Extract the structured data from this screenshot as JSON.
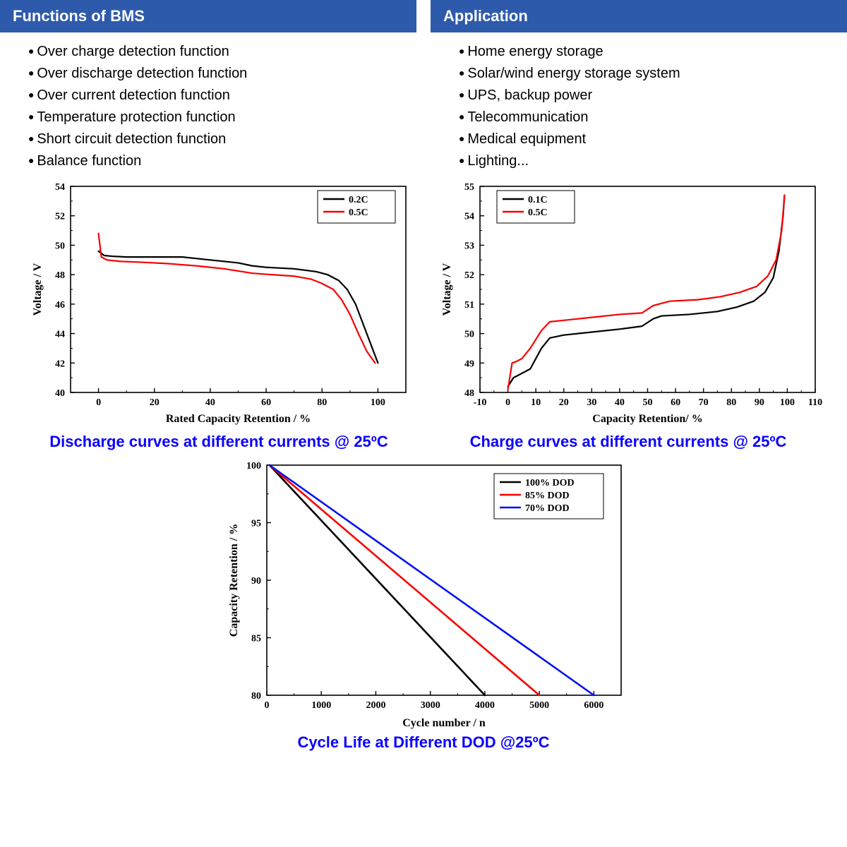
{
  "sections": {
    "bms": {
      "title": "Functions of BMS",
      "items": [
        "Over charge detection function",
        "Over discharge detection function",
        "Over current detection function",
        "Temperature protection function",
        "Short circuit detection function",
        "Balance function"
      ]
    },
    "app": {
      "title": "Application",
      "items": [
        "Home energy storage",
        "Solar/wind energy storage system",
        "UPS, backup power",
        "Telecommunication",
        "Medical equipment",
        "Lighting..."
      ]
    }
  },
  "header_bg": "#2e5aac",
  "header_fg": "#ffffff",
  "caption_color": "#0b00ff",
  "charts": {
    "discharge": {
      "type": "line",
      "caption": "Discharge curves at different currents @ 25ºC",
      "xlabel": "Rated Capacity Retention / %",
      "ylabel": "Voltage / V",
      "xlim": [
        -10,
        110
      ],
      "ylim": [
        40,
        54
      ],
      "xticks": [
        0,
        20,
        40,
        60,
        80,
        100
      ],
      "yticks": [
        40,
        42,
        44,
        46,
        48,
        50,
        52,
        54
      ],
      "legend_items": [
        {
          "name": "0.2C",
          "color": "#000000"
        },
        {
          "name": "0.5C",
          "color": "#f80000"
        }
      ],
      "series": [
        {
          "color": "#000000",
          "width": 2.2,
          "points": [
            [
              0,
              49.6
            ],
            [
              2,
              49.3
            ],
            [
              5,
              49.25
            ],
            [
              10,
              49.2
            ],
            [
              20,
              49.2
            ],
            [
              30,
              49.2
            ],
            [
              40,
              49.0
            ],
            [
              50,
              48.8
            ],
            [
              55,
              48.6
            ],
            [
              60,
              48.5
            ],
            [
              70,
              48.4
            ],
            [
              78,
              48.2
            ],
            [
              82,
              48.0
            ],
            [
              86,
              47.6
            ],
            [
              89,
              47.0
            ],
            [
              92,
              46.0
            ],
            [
              95,
              44.5
            ],
            [
              98,
              43.0
            ],
            [
              100,
              42.0
            ]
          ]
        },
        {
          "color": "#f80000",
          "width": 2.2,
          "points": [
            [
              0,
              50.8
            ],
            [
              1,
              49.2
            ],
            [
              3,
              49.0
            ],
            [
              8,
              48.9
            ],
            [
              15,
              48.85
            ],
            [
              25,
              48.75
            ],
            [
              35,
              48.6
            ],
            [
              45,
              48.4
            ],
            [
              55,
              48.1
            ],
            [
              62,
              48.0
            ],
            [
              70,
              47.9
            ],
            [
              76,
              47.7
            ],
            [
              80,
              47.4
            ],
            [
              84,
              47.0
            ],
            [
              87,
              46.3
            ],
            [
              90,
              45.3
            ],
            [
              93,
              44.0
            ],
            [
              96,
              42.8
            ],
            [
              99,
              42.0
            ]
          ]
        }
      ],
      "border_color": "#000000",
      "background": "#ffffff",
      "minor_ticks": true
    },
    "charge": {
      "type": "line",
      "caption": "Charge curves at different currents @ 25ºC",
      "xlabel": "Capacity Retention/ %",
      "ylabel": "Voltage / V",
      "xlim": [
        -10,
        110
      ],
      "ylim": [
        48,
        55
      ],
      "xticks": [
        -10,
        0,
        10,
        20,
        30,
        40,
        50,
        60,
        70,
        80,
        90,
        100,
        110
      ],
      "yticks": [
        48,
        49,
        50,
        51,
        52,
        53,
        54,
        55
      ],
      "legend_items": [
        {
          "name": "0.1C",
          "color": "#000000"
        },
        {
          "name": "0.5C",
          "color": "#f80000"
        }
      ],
      "series": [
        {
          "color": "#000000",
          "width": 2.2,
          "points": [
            [
              0,
              48.2
            ],
            [
              2,
              48.5
            ],
            [
              4,
              48.6
            ],
            [
              8,
              48.8
            ],
            [
              12,
              49.5
            ],
            [
              15,
              49.85
            ],
            [
              20,
              49.95
            ],
            [
              30,
              50.05
            ],
            [
              40,
              50.15
            ],
            [
              48,
              50.25
            ],
            [
              52,
              50.5
            ],
            [
              55,
              50.6
            ],
            [
              65,
              50.65
            ],
            [
              75,
              50.75
            ],
            [
              82,
              50.9
            ],
            [
              88,
              51.1
            ],
            [
              92,
              51.4
            ],
            [
              95,
              51.9
            ],
            [
              97,
              52.8
            ],
            [
              98.5,
              54.0
            ],
            [
              99,
              54.7
            ]
          ]
        },
        {
          "color": "#f80000",
          "width": 2.2,
          "points": [
            [
              0,
              48.1
            ],
            [
              1.5,
              49.0
            ],
            [
              3,
              49.05
            ],
            [
              5,
              49.15
            ],
            [
              8,
              49.5
            ],
            [
              12,
              50.1
            ],
            [
              15,
              50.4
            ],
            [
              20,
              50.45
            ],
            [
              30,
              50.55
            ],
            [
              40,
              50.65
            ],
            [
              48,
              50.7
            ],
            [
              52,
              50.95
            ],
            [
              58,
              51.1
            ],
            [
              68,
              51.15
            ],
            [
              76,
              51.25
            ],
            [
              83,
              51.4
            ],
            [
              89,
              51.6
            ],
            [
              93,
              51.95
            ],
            [
              96,
              52.5
            ],
            [
              98,
              53.5
            ],
            [
              99,
              54.7
            ]
          ]
        }
      ],
      "border_color": "#000000",
      "background": "#ffffff",
      "minor_ticks": true
    },
    "cycle": {
      "type": "line",
      "caption": "Cycle Life at Different DOD @25ºC",
      "xlabel": "Cycle number / n",
      "ylabel": "Capacity Retention / %",
      "xlim": [
        0,
        6500
      ],
      "ylim": [
        80,
        100
      ],
      "xticks": [
        0,
        1000,
        2000,
        3000,
        4000,
        5000,
        6000
      ],
      "yticks": [
        80,
        85,
        90,
        95,
        100
      ],
      "legend_items": [
        {
          "name": "100% DOD",
          "color": "#000000"
        },
        {
          "name": "85% DOD",
          "color": "#f80000"
        },
        {
          "name": "70% DOD",
          "color": "#0010f0"
        }
      ],
      "series": [
        {
          "color": "#000000",
          "width": 2.6,
          "points": [
            [
              50,
              100
            ],
            [
              4000,
              80
            ]
          ]
        },
        {
          "color": "#f80000",
          "width": 2.6,
          "points": [
            [
              50,
              100
            ],
            [
              5000,
              80
            ]
          ]
        },
        {
          "color": "#0010f0",
          "width": 2.6,
          "points": [
            [
              50,
              100
            ],
            [
              6000,
              80
            ]
          ]
        }
      ],
      "border_color": "#000000",
      "background": "#ffffff",
      "minor_ticks": true
    }
  }
}
